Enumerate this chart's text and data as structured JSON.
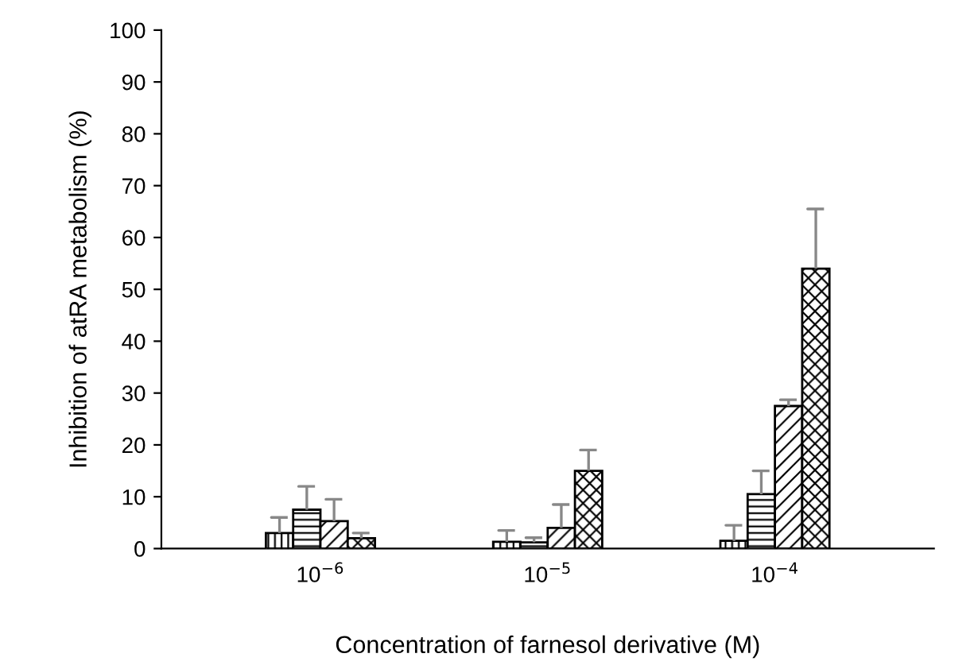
{
  "chart_data": {
    "type": "bar",
    "xlabel": "Concentration of farnesol derivative (M)",
    "ylabel": "Inhibition of atRA metabolism (%)",
    "categories": [
      "10$^{−6}$",
      "10$^{−5}$",
      "10$^{−4}$"
    ],
    "series": [
      {
        "color": "#000000",
        "values": [
          3,
          1.3,
          1.5
        ],
        "errors": [
          3,
          2.2,
          3
        ]
      },
      {
        "color": "#000000",
        "values": [
          7.5,
          1.2,
          10.5
        ],
        "errors": [
          4.5,
          0.9,
          4.5
        ]
      },
      {
        "color": "#000000",
        "values": [
          5.3,
          4,
          27.5
        ],
        "errors": [
          4.2,
          4.5,
          1.2
        ]
      },
      {
        "color": "#000000",
        "values": [
          2,
          15,
          54
        ],
        "errors": [
          1,
          4,
          11.5
        ]
      }
    ],
    "ylim": [
      0,
      100
    ],
    "yticks": [
      0,
      10,
      20,
      30,
      40,
      50,
      60,
      70,
      80,
      90,
      100
    ],
    "grid": false,
    "legend": false
  }
}
